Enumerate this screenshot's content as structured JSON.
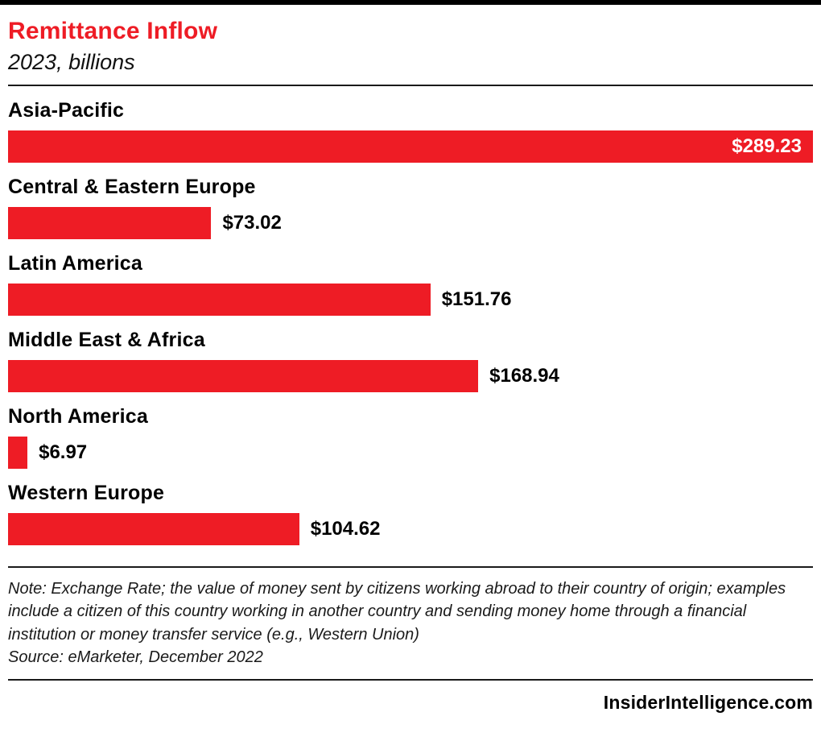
{
  "header": {
    "title": "Remittance Inflow",
    "subtitle": "2023, billions"
  },
  "chart_data": {
    "type": "bar",
    "orientation": "horizontal",
    "title": "Remittance Inflow",
    "subtitle": "2023, billions",
    "categories": [
      "Asia-Pacific",
      "Central & Eastern Europe",
      "Latin America",
      "Middle East & Africa",
      "North America",
      "Western Europe"
    ],
    "values": [
      289.23,
      73.02,
      151.76,
      168.94,
      6.97,
      104.62
    ],
    "value_labels": [
      "$289.23",
      "$73.02",
      "$151.76",
      "$168.94",
      "$6.97",
      "$104.62"
    ],
    "bar_color": "#ee1c25",
    "xlim": [
      0,
      289.23
    ],
    "grid": false,
    "legend": false
  },
  "note": "Note: Exchange Rate; the value of money sent by citizens working abroad to their country of origin; examples include a citizen of this country working in another country and sending money home through a financial institution or money transfer service (e.g., Western Union)",
  "source": "Source: eMarketer, December 2022",
  "footer": {
    "site": "InsiderIntelligence.com"
  }
}
